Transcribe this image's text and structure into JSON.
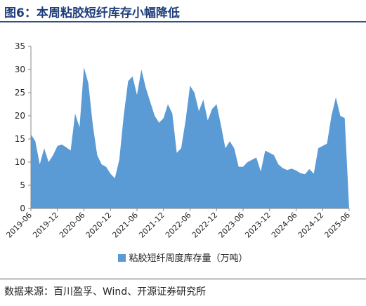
{
  "figure": {
    "title": "图6：本周粘胶短纤库存小幅降低",
    "source": "数据来源：百川盈孚、Wind、开源证券研究所"
  },
  "colors": {
    "fill": "#5b9bd5",
    "axis": "#888888",
    "title": "#1f3f7a"
  },
  "chart_data": {
    "type": "area",
    "title": "",
    "xlabel": "",
    "ylabel": "",
    "ylim": [
      0,
      35
    ],
    "yticks": [
      0,
      5,
      10,
      15,
      20,
      25,
      30,
      35
    ],
    "xlim": [
      "2019-06",
      "2025-06"
    ],
    "xticks": [
      "2019-06",
      "2019-12",
      "2020-06",
      "2020-12",
      "2021-06",
      "2021-12",
      "2022-06",
      "2022-12",
      "2023-06",
      "2023-12",
      "2024-06",
      "2024-12",
      "2025-06"
    ],
    "grid": false,
    "legend": "bottom",
    "series": [
      {
        "name": "粘胶短纤周度库存量（万吨）",
        "points": [
          [
            "2019-06",
            16.0
          ],
          [
            "2019-07",
            14.5
          ],
          [
            "2019-08",
            9.5
          ],
          [
            "2019-09",
            13.0
          ],
          [
            "2019-10",
            10.0
          ],
          [
            "2019-11",
            11.5
          ],
          [
            "2019-12",
            13.5
          ],
          [
            "2020-01",
            13.8
          ],
          [
            "2020-02",
            13.2
          ],
          [
            "2020-03",
            12.5
          ],
          [
            "2020-04",
            20.5
          ],
          [
            "2020-05",
            17.5
          ],
          [
            "2020-06",
            30.5
          ],
          [
            "2020-07",
            27.0
          ],
          [
            "2020-08",
            18.0
          ],
          [
            "2020-09",
            11.5
          ],
          [
            "2020-10",
            9.5
          ],
          [
            "2020-11",
            9.0
          ],
          [
            "2020-12",
            7.5
          ],
          [
            "2021-01",
            6.5
          ],
          [
            "2021-02",
            10.5
          ],
          [
            "2021-03",
            20.0
          ],
          [
            "2021-04",
            27.5
          ],
          [
            "2021-05",
            28.5
          ],
          [
            "2021-06",
            24.5
          ],
          [
            "2021-07",
            30.0
          ],
          [
            "2021-08",
            26.0
          ],
          [
            "2021-09",
            23.0
          ],
          [
            "2021-10",
            20.0
          ],
          [
            "2021-11",
            18.5
          ],
          [
            "2021-12",
            19.5
          ],
          [
            "2022-01",
            22.5
          ],
          [
            "2022-02",
            20.5
          ],
          [
            "2022-03",
            12.0
          ],
          [
            "2022-04",
            13.0
          ],
          [
            "2022-05",
            19.0
          ],
          [
            "2022-06",
            26.5
          ],
          [
            "2022-07",
            25.0
          ],
          [
            "2022-08",
            21.0
          ],
          [
            "2022-09",
            23.5
          ],
          [
            "2022-10",
            19.0
          ],
          [
            "2022-11",
            21.5
          ],
          [
            "2022-12",
            22.5
          ],
          [
            "2023-01",
            18.0
          ],
          [
            "2023-02",
            13.0
          ],
          [
            "2023-03",
            14.5
          ],
          [
            "2023-04",
            13.0
          ],
          [
            "2023-05",
            9.0
          ],
          [
            "2023-06",
            9.0
          ],
          [
            "2023-07",
            10.0
          ],
          [
            "2023-08",
            10.5
          ],
          [
            "2023-09",
            11.0
          ],
          [
            "2023-10",
            8.0
          ],
          [
            "2023-11",
            12.5
          ],
          [
            "2023-12",
            12.0
          ],
          [
            "2024-01",
            11.5
          ],
          [
            "2024-02",
            9.5
          ],
          [
            "2024-03",
            8.7
          ],
          [
            "2024-04",
            8.3
          ],
          [
            "2024-05",
            8.6
          ],
          [
            "2024-06",
            8.2
          ],
          [
            "2024-07",
            7.6
          ],
          [
            "2024-08",
            7.4
          ],
          [
            "2024-09",
            8.5
          ],
          [
            "2024-10",
            7.5
          ],
          [
            "2024-11",
            13.0
          ],
          [
            "2024-12",
            13.5
          ],
          [
            "2025-01",
            14.0
          ],
          [
            "2025-02",
            20.0
          ],
          [
            "2025-03",
            24.0
          ],
          [
            "2025-04",
            20.0
          ],
          [
            "2025-05",
            19.5
          ],
          [
            "2025-06",
            0.0
          ]
        ]
      }
    ]
  }
}
